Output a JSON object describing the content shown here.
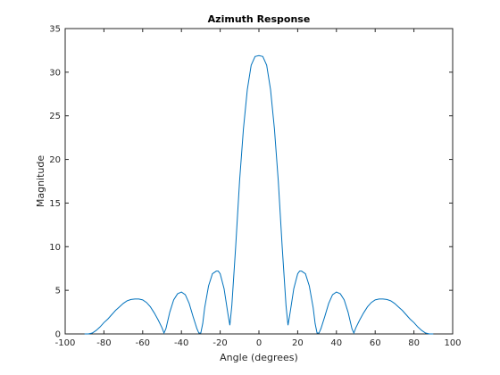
{
  "chart_data": {
    "type": "line",
    "title": "Azimuth Response",
    "xlabel": "Angle (degrees)",
    "ylabel": "Magnitude",
    "xlim": [
      -100,
      100
    ],
    "ylim": [
      0,
      35
    ],
    "xticks": [
      "-100",
      "-80",
      "-60",
      "-40",
      "-20",
      "0",
      "20",
      "40",
      "60",
      "80",
      "100"
    ],
    "yticks": [
      "0",
      "5",
      "10",
      "15",
      "20",
      "25",
      "30",
      "35"
    ],
    "grid": false,
    "colors": {
      "line": "#0072bd",
      "axes": "#262626",
      "background": "#ffffff"
    },
    "series": [
      {
        "x": [
          -90,
          -88,
          -86,
          -84,
          -82,
          -80,
          -78,
          -76,
          -74,
          -72,
          -70,
          -68,
          -66,
          -64,
          -62,
          -60,
          -58,
          -56,
          -54,
          -52,
          -50,
          -49,
          -48,
          -46,
          -44,
          -42,
          -40,
          -38,
          -36,
          -34,
          -32,
          -31,
          -30,
          -29,
          -28,
          -26,
          -24,
          -22,
          -21,
          -20,
          -18,
          -16,
          -15,
          -14,
          -12,
          -10,
          -8,
          -6,
          -4,
          -2,
          0,
          2,
          4,
          6,
          8,
          10,
          12,
          14,
          15,
          16,
          18,
          20,
          21,
          22,
          24,
          26,
          28,
          29,
          30,
          31,
          32,
          34,
          36,
          38,
          40,
          42,
          44,
          46,
          48,
          49,
          50,
          52,
          54,
          56,
          58,
          60,
          62,
          64,
          66,
          68,
          70,
          72,
          74,
          76,
          78,
          80,
          82,
          84,
          86,
          88,
          90
        ],
        "y": [
          0,
          0,
          0.1,
          0.4,
          0.8,
          1.3,
          1.7,
          2.2,
          2.7,
          3.1,
          3.5,
          3.8,
          3.95,
          4.0,
          4.0,
          3.9,
          3.6,
          3.1,
          2.4,
          1.6,
          0.7,
          0.1,
          0.6,
          2.5,
          3.9,
          4.6,
          4.8,
          4.5,
          3.5,
          2.0,
          0.6,
          0.1,
          0.1,
          1.2,
          3.0,
          5.5,
          6.9,
          7.2,
          7.2,
          6.9,
          5.2,
          2.3,
          1.0,
          3.2,
          10.0,
          17.5,
          23.5,
          28.0,
          30.8,
          31.8,
          31.9,
          31.8,
          30.8,
          28.0,
          23.5,
          17.5,
          10.0,
          3.2,
          1.0,
          2.3,
          5.2,
          6.9,
          7.2,
          7.2,
          6.9,
          5.5,
          3.0,
          1.2,
          0.1,
          0.1,
          0.6,
          2.0,
          3.5,
          4.5,
          4.8,
          4.6,
          3.9,
          2.5,
          0.6,
          0.1,
          0.7,
          1.6,
          2.4,
          3.1,
          3.6,
          3.9,
          4.0,
          4.0,
          3.95,
          3.8,
          3.5,
          3.1,
          2.7,
          2.2,
          1.7,
          1.3,
          0.8,
          0.4,
          0.1,
          0,
          0
        ]
      }
    ]
  }
}
